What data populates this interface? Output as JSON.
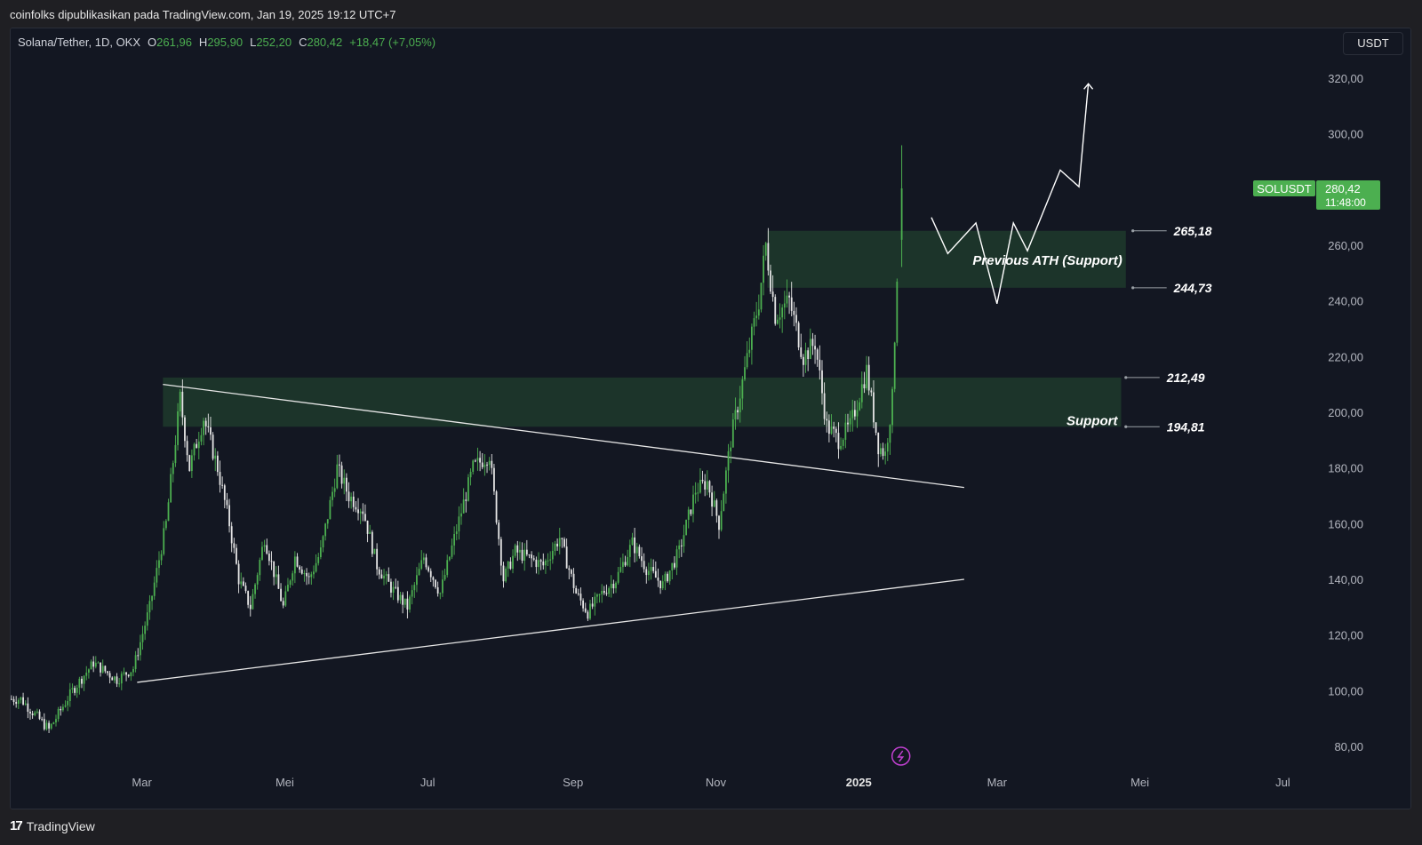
{
  "header": {
    "publish_info": "coinfolks dipublikasikan pada TradingView.com, Jan 19, 2025 19:12 UTC+7"
  },
  "legend": {
    "symbol": "Solana/Tether, 1D, OKX",
    "open_label": "O",
    "open": "261,96",
    "high_label": "H",
    "high": "295,90",
    "low_label": "L",
    "low": "252,20",
    "close_label": "C",
    "close": "280,42",
    "change": "+18,47 (+7,05%)"
  },
  "currency_button": "USDT",
  "footer": {
    "brand": "TradingView"
  },
  "colors": {
    "background": "#131722",
    "up_candle": "#4caf50",
    "down_candle": "#e6e6e6",
    "zone_fill": "#1f3a2b",
    "price_tag": "#4caf50"
  },
  "chart_data": {
    "type": "candlestick",
    "symbol": "SOLUSDT",
    "interval": "1D",
    "exchange": "OKX",
    "ylim": [
      72,
      330
    ],
    "y_ticks": [
      "320,00",
      "300,00",
      "280,00",
      "260,00",
      "240,00",
      "220,00",
      "200,00",
      "180,00",
      "160,00",
      "140,00",
      "120,00",
      "100,00",
      "80,00"
    ],
    "y_tick_values": [
      320,
      300,
      280,
      260,
      240,
      220,
      200,
      180,
      160,
      140,
      120,
      100,
      80
    ],
    "x_ticks": [
      {
        "label": "Mar",
        "date": "2024-03-01"
      },
      {
        "label": "Mei",
        "date": "2024-05-01"
      },
      {
        "label": "Jul",
        "date": "2024-07-01"
      },
      {
        "label": "Sep",
        "date": "2024-09-01"
      },
      {
        "label": "Nov",
        "date": "2024-11-01"
      },
      {
        "label": "2025",
        "date": "2025-01-01"
      },
      {
        "label": "Mar",
        "date": "2025-03-01"
      },
      {
        "label": "Mei",
        "date": "2025-05-01"
      },
      {
        "label": "Jul",
        "date": "2025-07-01"
      }
    ],
    "price_tag": {
      "symbol": "SOLUSDT",
      "price": "280,42",
      "value": 280.42,
      "countdown": "11:48:00"
    },
    "close_path": [
      [
        "2024-01-10",
        97
      ],
      [
        "2024-01-22",
        86
      ],
      [
        "2024-02-01",
        100
      ],
      [
        "2024-02-10",
        110
      ],
      [
        "2024-02-20",
        104
      ],
      [
        "2024-02-27",
        108
      ],
      [
        "2024-03-05",
        130
      ],
      [
        "2024-03-12",
        160
      ],
      [
        "2024-03-18",
        205
      ],
      [
        "2024-03-22",
        180
      ],
      [
        "2024-03-28",
        198
      ],
      [
        "2024-04-03",
        180
      ],
      [
        "2024-04-08",
        160
      ],
      [
        "2024-04-12",
        140
      ],
      [
        "2024-04-17",
        130
      ],
      [
        "2024-04-23",
        155
      ],
      [
        "2024-05-01",
        130
      ],
      [
        "2024-05-06",
        148
      ],
      [
        "2024-05-12",
        140
      ],
      [
        "2024-05-17",
        150
      ],
      [
        "2024-05-24",
        180
      ],
      [
        "2024-05-29",
        170
      ],
      [
        "2024-06-04",
        165
      ],
      [
        "2024-06-10",
        145
      ],
      [
        "2024-06-16",
        137
      ],
      [
        "2024-06-23",
        130
      ],
      [
        "2024-06-30",
        148
      ],
      [
        "2024-07-07",
        135
      ],
      [
        "2024-07-14",
        158
      ],
      [
        "2024-07-21",
        180
      ],
      [
        "2024-07-28",
        185
      ],
      [
        "2024-08-03",
        140
      ],
      [
        "2024-08-08",
        150
      ],
      [
        "2024-08-13",
        148
      ],
      [
        "2024-08-20",
        145
      ],
      [
        "2024-08-27",
        155
      ],
      [
        "2024-09-03",
        135
      ],
      [
        "2024-09-08",
        128
      ],
      [
        "2024-09-14",
        135
      ],
      [
        "2024-09-20",
        140
      ],
      [
        "2024-09-27",
        153
      ],
      [
        "2024-10-03",
        144
      ],
      [
        "2024-10-10",
        138
      ],
      [
        "2024-10-17",
        150
      ],
      [
        "2024-10-24",
        172
      ],
      [
        "2024-10-29",
        175
      ],
      [
        "2024-11-03",
        160
      ],
      [
        "2024-11-08",
        190
      ],
      [
        "2024-11-14",
        215
      ],
      [
        "2024-11-20",
        240
      ],
      [
        "2024-11-23",
        260
      ],
      [
        "2024-11-27",
        235
      ],
      [
        "2024-12-03",
        240
      ],
      [
        "2024-12-09",
        220
      ],
      [
        "2024-12-14",
        225
      ],
      [
        "2024-12-19",
        195
      ],
      [
        "2024-12-24",
        190
      ],
      [
        "2024-12-29",
        195
      ],
      [
        "2025-01-05",
        215
      ],
      [
        "2025-01-10",
        188
      ],
      [
        "2025-01-13",
        185
      ],
      [
        "2025-01-16",
        205
      ],
      [
        "2025-01-18",
        250
      ],
      [
        "2025-01-19",
        280.42
      ]
    ],
    "last_candle": {
      "date": "2025-01-19",
      "open": 261.96,
      "high": 295.9,
      "low": 252.2,
      "close": 280.42
    },
    "trendlines": [
      {
        "name": "descending resistance",
        "from": [
          "2024-03-10",
          210
        ],
        "to": [
          "2025-02-15",
          173
        ]
      },
      {
        "name": "ascending support",
        "from": [
          "2024-02-28",
          103
        ],
        "to": [
          "2025-02-15",
          140
        ]
      }
    ],
    "zones": [
      {
        "label": "Previous ATH (Support)",
        "from_date": "2024-11-23",
        "to_date": "2025-04-25",
        "low": 244.73,
        "high": 265.18
      },
      {
        "label": "Support",
        "from_date": "2024-03-10",
        "to_date": "2025-04-23",
        "low": 194.81,
        "high": 212.49
      }
    ],
    "levels": [
      {
        "label": "265,18",
        "value": 265.18
      },
      {
        "label": "244,73",
        "value": 244.73
      },
      {
        "label": "212,49",
        "value": 212.49
      },
      {
        "label": "194,81",
        "value": 194.81
      }
    ],
    "projection": [
      [
        "2025-02-01",
        270
      ],
      [
        "2025-02-08",
        257
      ],
      [
        "2025-02-20",
        268
      ],
      [
        "2025-03-01",
        239
      ],
      [
        "2025-03-08",
        268
      ],
      [
        "2025-03-14",
        258
      ],
      [
        "2025-03-28",
        287
      ],
      [
        "2025-04-05",
        281
      ],
      [
        "2025-04-09",
        318
      ]
    ]
  }
}
